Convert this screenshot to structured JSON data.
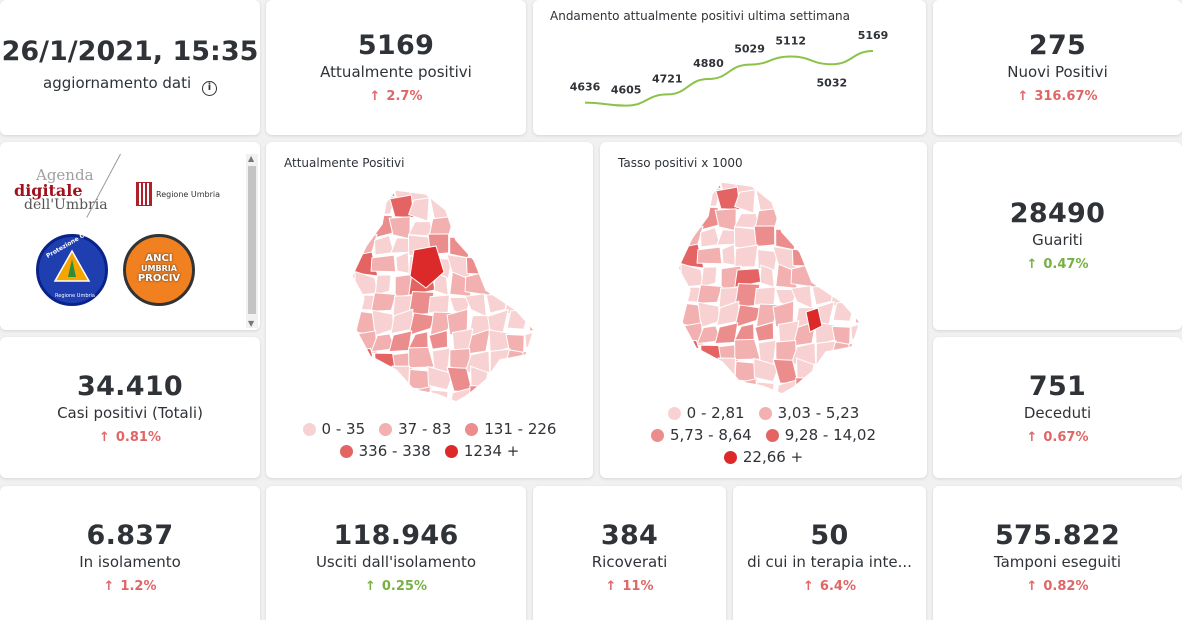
{
  "update": {
    "datetime": "26/1/2021, 15:35",
    "label": "aggiornamento dati",
    "info_icon": "info-icon"
  },
  "kpis": {
    "attualmente_positivi": {
      "value": "5169",
      "label": "Attualmente positivi",
      "delta": "2.7%",
      "arrow": "↑"
    },
    "nuovi_positivi": {
      "value": "275",
      "label": "Nuovi Positivi",
      "delta": "316.67%",
      "arrow": "↑"
    },
    "guariti": {
      "value": "28490",
      "label": "Guariti",
      "delta": "0.47%",
      "arrow": "↑"
    },
    "casi_totali": {
      "value": "34.410",
      "label": "Casi positivi (Totali)",
      "delta": "0.81%",
      "arrow": "↑"
    },
    "deceduti": {
      "value": "751",
      "label": "Deceduti",
      "delta": "0.67%",
      "arrow": "↑"
    },
    "isolamento": {
      "value": "6.837",
      "label": "In isolamento",
      "delta": "1.2%",
      "arrow": "↑"
    },
    "usciti": {
      "value": "118.946",
      "label": "Usciti dall'isolamento",
      "delta": "0.25%",
      "arrow": "↑"
    },
    "ricoverati": {
      "value": "384",
      "label": "Ricoverati",
      "delta": "11%",
      "arrow": "↑"
    },
    "terapia": {
      "value": "50",
      "label": "di cui in terapia inte...",
      "delta": "6.4%",
      "arrow": "↑"
    },
    "tamponi": {
      "value": "575.822",
      "label": "Tamponi eseguiti",
      "delta": "0.82%",
      "arrow": "↑"
    }
  },
  "colors": {
    "red_delta": "#e06666",
    "green_delta": "#77b144",
    "line": "#8bc34a"
  },
  "logos": {
    "agenda_line1": "Agenda",
    "agenda_line2": "digitale",
    "agenda_line3": "dell'Umbria",
    "regione": "Regione Umbria",
    "protezione": "Protezione Civile",
    "protezione_sub": "Regione Umbria",
    "anci_1": "ANCI",
    "anci_2": "UMBRIA",
    "anci_3": "PROCIV"
  },
  "maps": {
    "positivi": {
      "title": "Attualmente Positivi",
      "legend": [
        {
          "label": "0 - 35",
          "color": "#f8d2d2"
        },
        {
          "label": "37 - 83",
          "color": "#f2b0b0"
        },
        {
          "label": "131 - 226",
          "color": "#ec8d8d"
        },
        {
          "label": "336 - 338",
          "color": "#e46464"
        },
        {
          "label": "1234 +",
          "color": "#dc2a2a"
        }
      ]
    },
    "tasso": {
      "title": "Tasso positivi x 1000",
      "legend": [
        {
          "label": "0 - 2,81",
          "color": "#f8d2d2"
        },
        {
          "label": "3,03 - 5,23",
          "color": "#f2b0b0"
        },
        {
          "label": "5,73 - 8,64",
          "color": "#ec8d8d"
        },
        {
          "label": "9,28 - 14,02",
          "color": "#e46464"
        },
        {
          "label": "22,66 +",
          "color": "#dc2a2a"
        }
      ]
    }
  },
  "chart_data": {
    "type": "line",
    "title": "Andamento attualmente positivi ultima settimana",
    "values": [
      4636,
      4605,
      4721,
      4880,
      5029,
      5112,
      5032,
      5169
    ],
    "labels": [
      "4636",
      "4605",
      "4721",
      "4880",
      "5029",
      "5112",
      "5032",
      "5169"
    ],
    "color": "#8bc34a"
  }
}
